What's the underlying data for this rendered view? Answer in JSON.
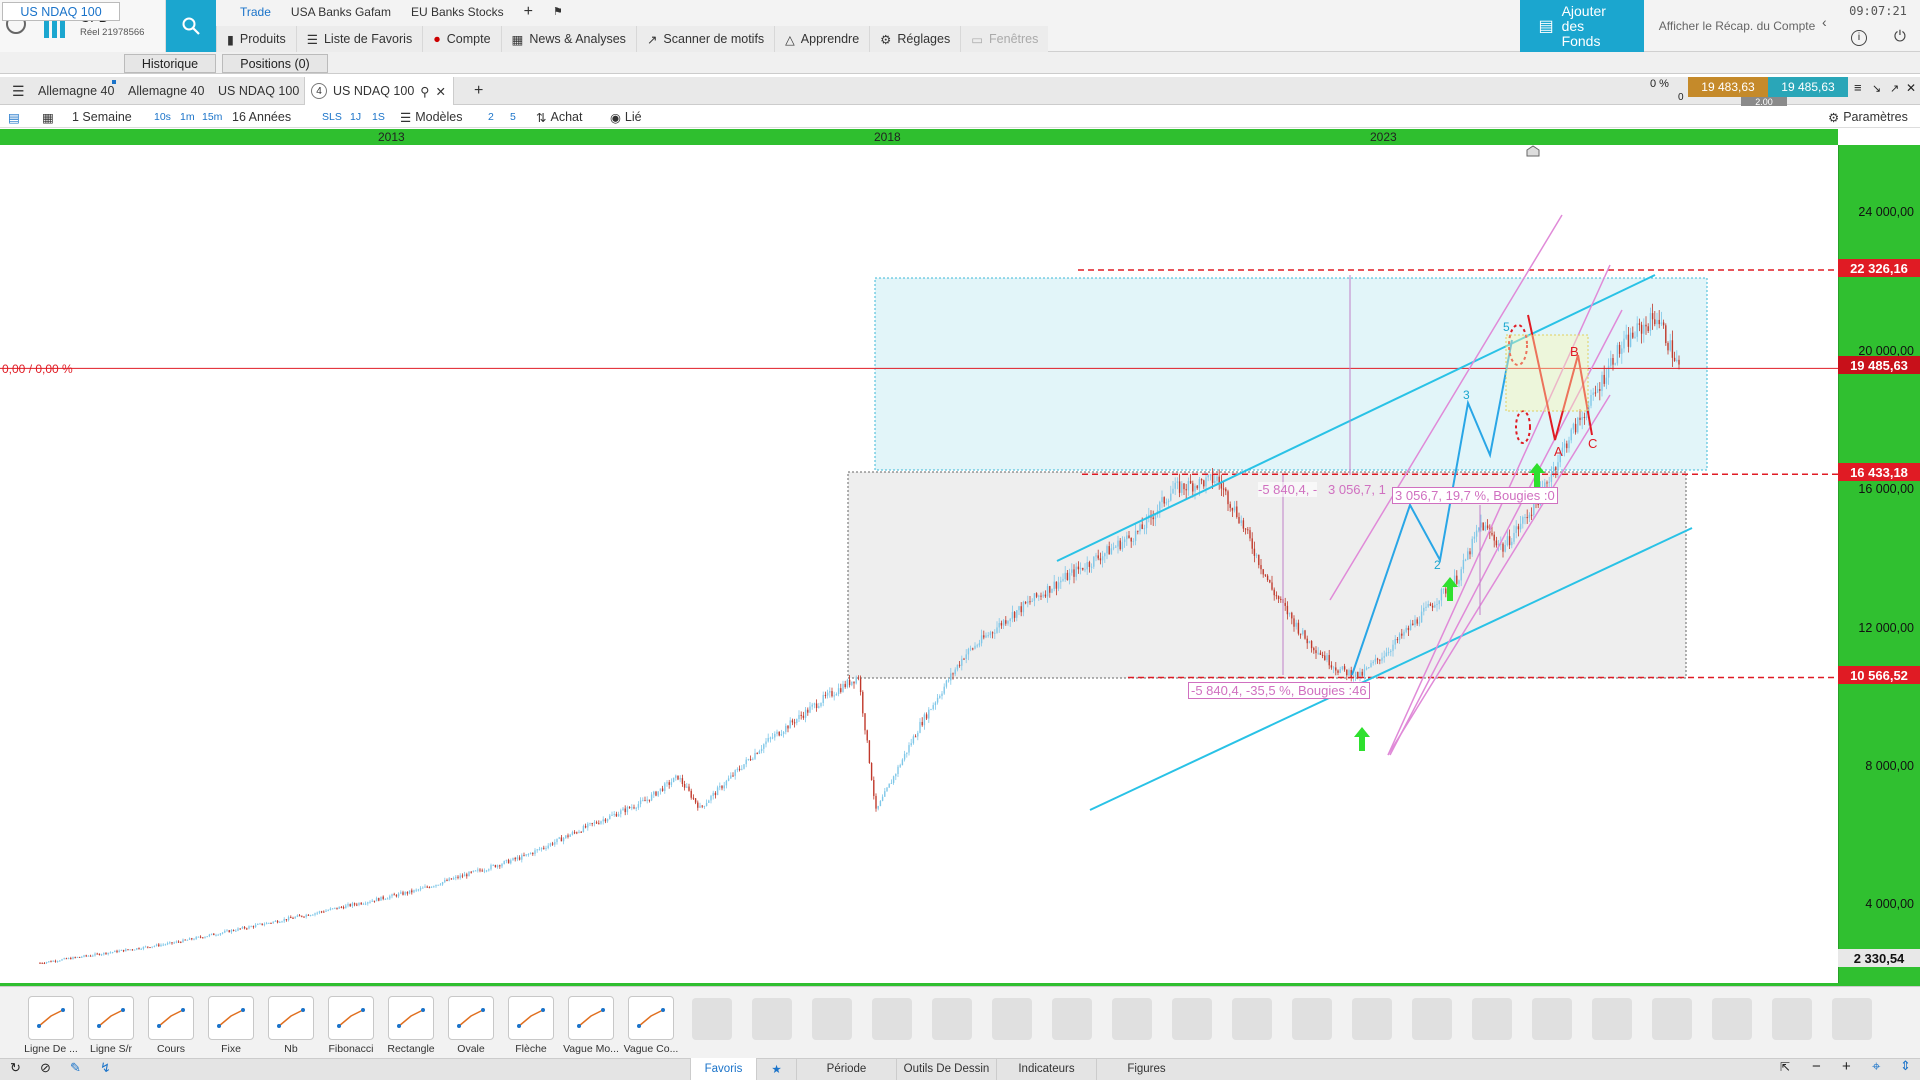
{
  "app": {
    "name": "CFD",
    "account": "Réel 21978566"
  },
  "top_menu": [
    "Trade",
    "USA Banks Gafam",
    "EU Banks Stocks"
  ],
  "main_menu": [
    {
      "label": "Produits",
      "icon": "book-icon"
    },
    {
      "label": "Liste de Favoris",
      "icon": "list-icon"
    },
    {
      "label": "Compte",
      "icon": "account-icon"
    },
    {
      "label": "News & Analyses",
      "icon": "news-icon"
    },
    {
      "label": "Scanner de motifs",
      "icon": "pattern-icon"
    },
    {
      "label": "Apprendre",
      "icon": "graduation-icon"
    },
    {
      "label": "Réglages",
      "icon": "gear-icon"
    },
    {
      "label": "Fenêtres",
      "icon": "window-icon"
    }
  ],
  "fund_button": "Ajouter des Fonds",
  "recap_link": "Afficher le Récap. du Compte",
  "clock": "09:07:21",
  "product_tabs": [
    "US NDAQ 100",
    "Historique",
    "Positions (0)"
  ],
  "chart_tabs": [
    "Allemagne 40",
    "Allemagne 40",
    "US NDAQ 100",
    "US NDAQ 100"
  ],
  "chart_tab_badge": "4",
  "toolbar": {
    "period": "1 Semaine",
    "intervals": [
      "10s",
      "1m",
      "15m"
    ],
    "range": "16 Années",
    "chart_types": [
      "SLS",
      "1J",
      "1S"
    ],
    "models": "Modèles",
    "nums": [
      "2",
      "5"
    ],
    "buy": "Achat",
    "linked": "Lié",
    "settings": "Paramètres"
  },
  "quote": {
    "pct": "0 %",
    "zero": "0",
    "bid": "19 483,63",
    "ask": "19 485,63",
    "spread": "2.00"
  },
  "years": [
    "2013",
    "2018",
    "2023"
  ],
  "axis_labels": [
    "24 000,00",
    "20 000,00",
    "16 000,00",
    "12 000,00",
    "8 000,00",
    "4 000,00"
  ],
  "axis_boxes": [
    {
      "value": "22 326,16",
      "color": "#e01b24"
    },
    {
      "value": "19 485,63",
      "color": "#c8101a"
    },
    {
      "value": "16 433,18",
      "color": "#e01b24"
    },
    {
      "value": "10 566,52",
      "color": "#e01b24"
    },
    {
      "value": "2 330,54",
      "color": "#e8e8e8"
    }
  ],
  "price_line_label": "0,00 / 0,00 %",
  "annotations": {
    "drop_top": "-5 840,4, -",
    "drop_top2": "3 056,7, 1",
    "rise": "3 056,7, 19,7 %, Bougies :0",
    "drop_bottom": "-5 840,4, -35,5 %, Bougies :46",
    "wave_labels": [
      "3",
      "5",
      "2",
      "4"
    ],
    "abc": [
      "A",
      "B",
      "C"
    ]
  },
  "chart_data": {
    "type": "candlestick",
    "interval": "1 Semaine",
    "symbol": "US NDAQ 100",
    "x_ticks": [
      "2013",
      "2018",
      "2023"
    ],
    "y_ticks": [
      4000,
      8000,
      12000,
      16000,
      20000,
      24000
    ],
    "current_price": 19485.63,
    "levels": [
      22326.16,
      16433.18,
      10566.52
    ],
    "low_label": 2330.54,
    "path": [
      [
        0,
        2330
      ],
      [
        60,
        2900
      ],
      [
        120,
        3700
      ],
      [
        170,
        4400
      ],
      [
        220,
        5400
      ],
      [
        250,
        6300
      ],
      [
        275,
        7000
      ],
      [
        290,
        7700
      ],
      [
        300,
        6800
      ],
      [
        330,
        8700
      ],
      [
        355,
        9900
      ],
      [
        372,
        10600
      ],
      [
        380,
        6700
      ],
      [
        400,
        9200
      ],
      [
        420,
        11200
      ],
      [
        440,
        12300
      ],
      [
        460,
        13200
      ],
      [
        480,
        14000
      ],
      [
        500,
        14800
      ],
      [
        515,
        16000
      ],
      [
        535,
        16300
      ],
      [
        545,
        15200
      ],
      [
        560,
        13100
      ],
      [
        575,
        11700
      ],
      [
        590,
        10800
      ],
      [
        600,
        10600
      ],
      [
        615,
        11500
      ],
      [
        630,
        12500
      ],
      [
        645,
        13500
      ],
      [
        655,
        15000
      ],
      [
        665,
        14300
      ],
      [
        680,
        15600
      ],
      [
        695,
        17500
      ],
      [
        705,
        18500
      ],
      [
        715,
        19800
      ],
      [
        725,
        20500
      ],
      [
        735,
        21000
      ],
      [
        745,
        19500
      ]
    ]
  },
  "tools": [
    {
      "label": "Ligne De ...",
      "icon": "line-icon"
    },
    {
      "label": "Ligne S/r",
      "icon": "sr-line-icon"
    },
    {
      "label": "Cours",
      "icon": "price-icon"
    },
    {
      "label": "Fixe",
      "icon": "fixed-icon"
    },
    {
      "label": "Nb",
      "icon": "text-icon"
    },
    {
      "label": "Fibonacci",
      "icon": "fibonacci-icon"
    },
    {
      "label": "Rectangle",
      "icon": "rectangle-icon"
    },
    {
      "label": "Ovale",
      "icon": "oval-icon"
    },
    {
      "label": "Flèche",
      "icon": "arrow-icon"
    },
    {
      "label": "Vague Mo...",
      "icon": "wave-icon"
    },
    {
      "label": "Vague Co...",
      "icon": "wave-corrective-icon"
    }
  ],
  "bottom_tabs": [
    "Favoris",
    "Période",
    "Outils De Dessin",
    "Indicateurs",
    "Figures"
  ]
}
